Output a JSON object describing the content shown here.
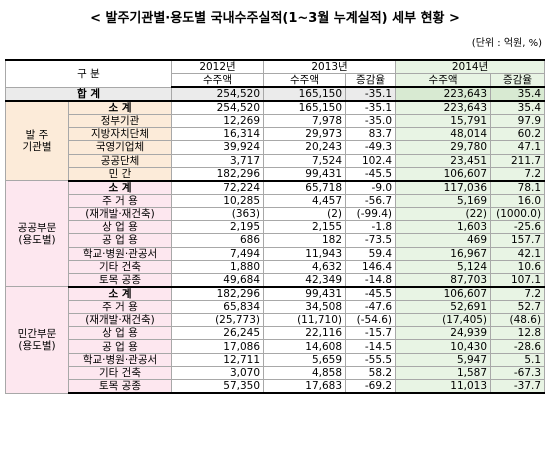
{
  "title": "< 발주기관별·용도별 국내수주실적(1~3월 누계실적) 세부 현황 >",
  "unit": "(단위 : 억원, %)",
  "header": {
    "category": "구   분",
    "years": [
      "2012년",
      "2013년",
      "2014년"
    ],
    "amount": "수주액",
    "change": "증감율"
  },
  "total": {
    "label": "합   계",
    "v2012": "254,520",
    "v2013": "165,150",
    "c2013": "-35.1",
    "v2014": "223,643",
    "c2014": "35.4"
  },
  "sections": [
    {
      "label": "발 주\n기관별",
      "theme": "ord",
      "rows": [
        {
          "label": "소   계",
          "subtotal": true,
          "v2012": "254,520",
          "v2013": "165,150",
          "c2013": "-35.1",
          "v2014": "223,643",
          "c2014": "35.4"
        },
        {
          "label": "정부기관",
          "v2012": "12,269",
          "v2013": "7,978",
          "c2013": "-35.0",
          "v2014": "15,791",
          "c2014": "97.9"
        },
        {
          "label": "지방자치단체",
          "v2012": "16,314",
          "v2013": "29,973",
          "c2013": "83.7",
          "v2014": "48,014",
          "c2014": "60.2"
        },
        {
          "label": "국영기업체",
          "v2012": "39,924",
          "v2013": "20,243",
          "c2013": "-49.3",
          "v2014": "29,780",
          "c2014": "47.1"
        },
        {
          "label": "공공단체",
          "v2012": "3,717",
          "v2013": "7,524",
          "c2013": "102.4",
          "v2014": "23,451",
          "c2014": "211.7"
        },
        {
          "label": "민   간",
          "v2012": "182,296",
          "v2013": "99,431",
          "c2013": "-45.5",
          "v2014": "106,607",
          "c2014": "7.2"
        }
      ]
    },
    {
      "label": "공공부문\n(용도별)",
      "theme": "pub",
      "rows": [
        {
          "label": "소   계",
          "subtotal": true,
          "v2012": "72,224",
          "v2013": "65,718",
          "c2013": "-9.0",
          "v2014": "117,036",
          "c2014": "78.1"
        },
        {
          "label": "주 거 용",
          "v2012": "10,285",
          "v2013": "4,457",
          "c2013": "-56.7",
          "v2014": "5,169",
          "c2014": "16.0"
        },
        {
          "label": "(재개발·재건축)",
          "v2012": "(363)",
          "v2013": "(2)",
          "c2013": "(-99.4)",
          "v2014": "(22)",
          "c2014": "(1000.0)"
        },
        {
          "label": "상 업 용",
          "v2012": "2,195",
          "v2013": "2,155",
          "c2013": "-1.8",
          "v2014": "1,603",
          "c2014": "-25.6"
        },
        {
          "label": "공 업 용",
          "v2012": "686",
          "v2013": "182",
          "c2013": "-73.5",
          "v2014": "469",
          "c2014": "157.7"
        },
        {
          "label": "학교·병원·관공서",
          "v2012": "7,494",
          "v2013": "11,943",
          "c2013": "59.4",
          "v2014": "16,967",
          "c2014": "42.1"
        },
        {
          "label": "기타 건축",
          "v2012": "1,880",
          "v2013": "4,632",
          "c2013": "146.4",
          "v2014": "5,124",
          "c2014": "10.6"
        },
        {
          "label": "토목 공종",
          "v2012": "49,684",
          "v2013": "42,349",
          "c2013": "-14.8",
          "v2014": "87,703",
          "c2014": "107.1"
        }
      ]
    },
    {
      "label": "민간부문\n(용도별)",
      "theme": "pri",
      "rows": [
        {
          "label": "소   계",
          "subtotal": true,
          "v2012": "182,296",
          "v2013": "99,431",
          "c2013": "-45.5",
          "v2014": "106,607",
          "c2014": "7.2"
        },
        {
          "label": "주 거 용",
          "v2012": "65,834",
          "v2013": "34,508",
          "c2013": "-47.6",
          "v2014": "52,691",
          "c2014": "52.7"
        },
        {
          "label": "(재개발·재건축)",
          "v2012": "(25,773)",
          "v2013": "(11,710)",
          "c2013": "(-54.6)",
          "v2014": "(17,405)",
          "c2014": "(48.6)"
        },
        {
          "label": "상 업 용",
          "v2012": "26,245",
          "v2013": "22,116",
          "c2013": "-15.7",
          "v2014": "24,939",
          "c2014": "12.8"
        },
        {
          "label": "공 업 용",
          "v2012": "17,086",
          "v2013": "14,608",
          "c2013": "-14.5",
          "v2014": "10,430",
          "c2014": "-28.6"
        },
        {
          "label": "학교·병원·관공서",
          "v2012": "12,711",
          "v2013": "5,659",
          "c2013": "-55.5",
          "v2014": "5,947",
          "c2014": "5.1"
        },
        {
          "label": "기타 건축",
          "v2012": "3,070",
          "v2013": "4,858",
          "c2013": "58.2",
          "v2014": "1,587",
          "c2014": "-67.3"
        },
        {
          "label": "토목 공종",
          "v2012": "57,350",
          "v2013": "17,683",
          "c2013": "-69.2",
          "v2014": "11,013",
          "c2014": "-37.7"
        }
      ]
    }
  ]
}
